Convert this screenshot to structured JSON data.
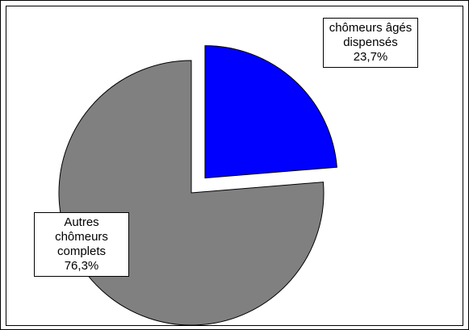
{
  "chart_data": {
    "type": "pie",
    "categories": [
      "chômeurs âgés dispensés",
      "Autres chômeurs complets"
    ],
    "values": [
      23.7,
      76.3
    ],
    "value_labels": [
      "23,7%",
      "76,3%"
    ],
    "colors": [
      "#0000ff",
      "#808080"
    ],
    "exploded": [
      true,
      false
    ]
  }
}
